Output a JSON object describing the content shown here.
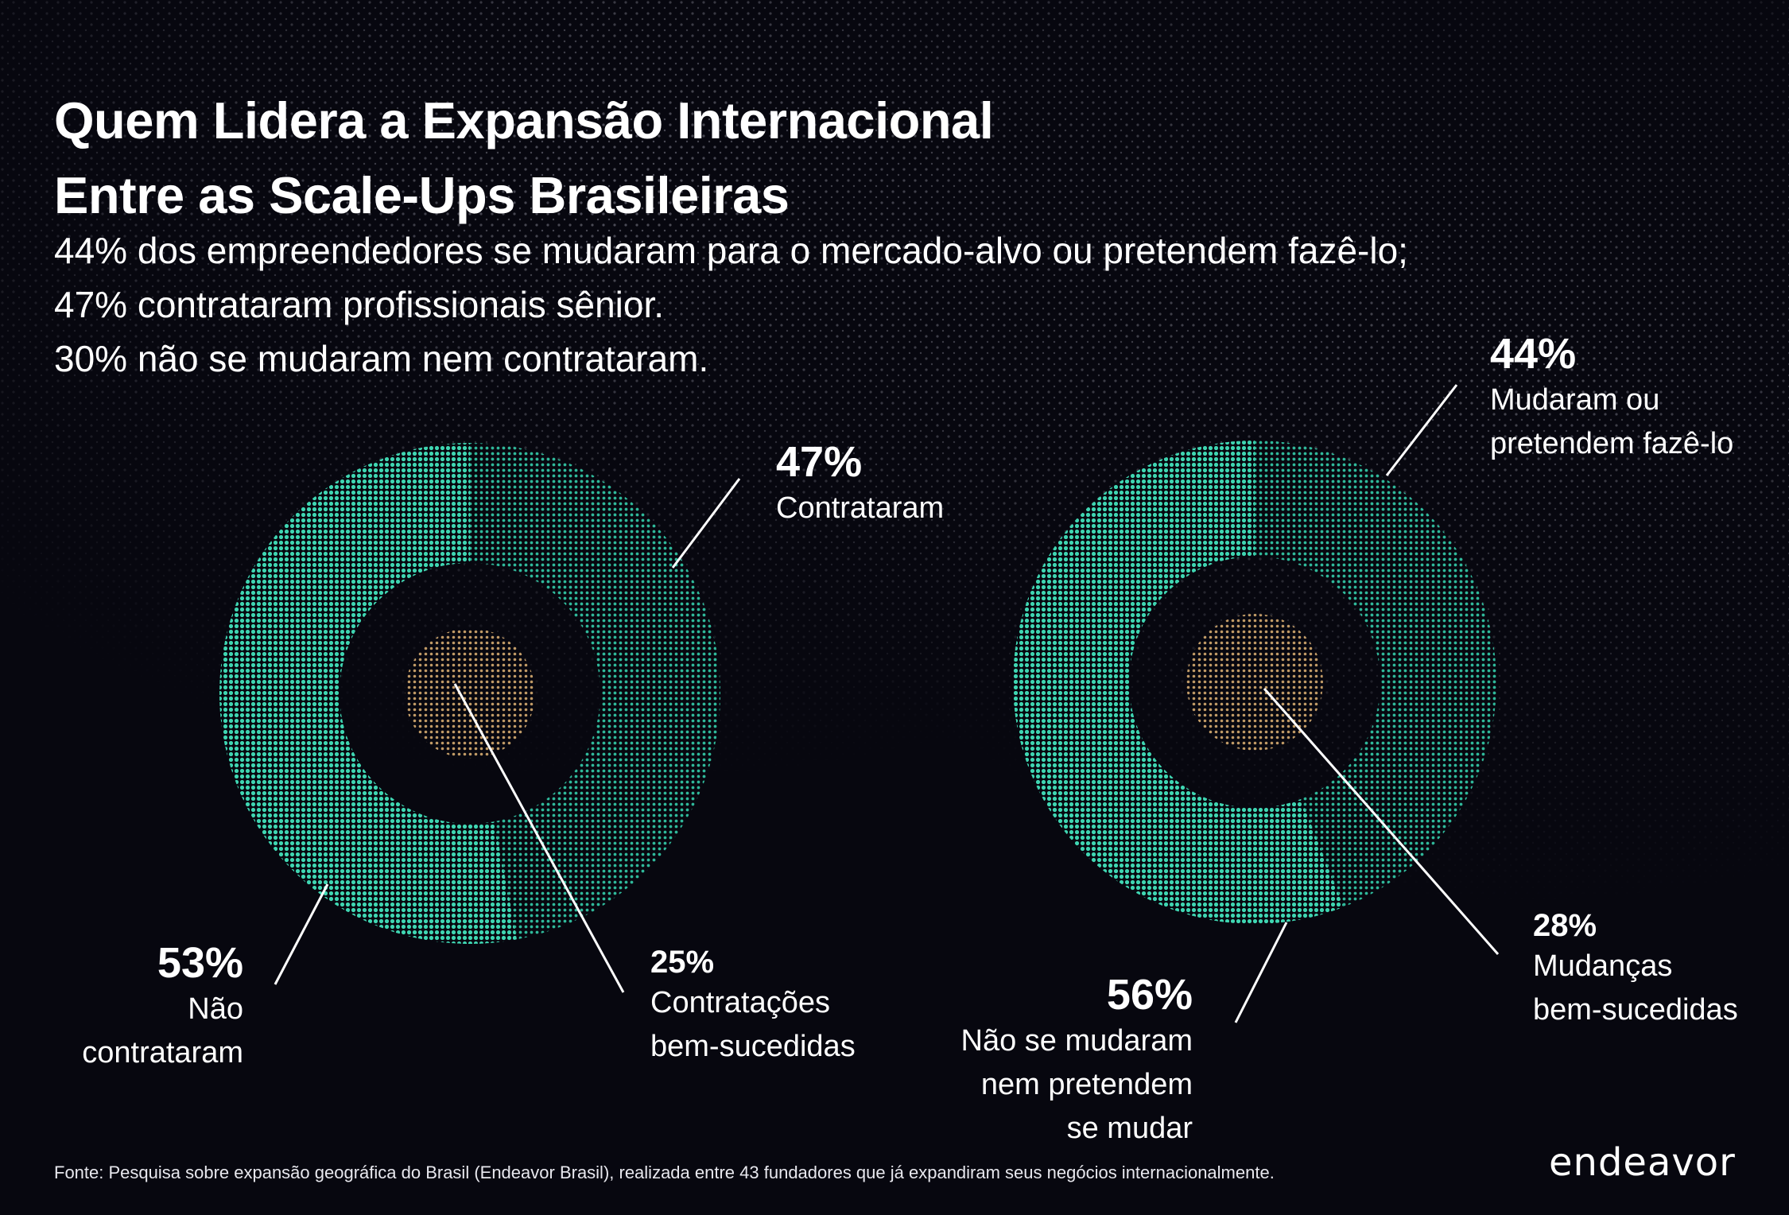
{
  "header": {
    "title_line1": "Quem Lidera a Expansão Internacional",
    "title_line2": "Entre as Scale-Ups Brasileiras",
    "subtitle_line1": "44% dos empreendedores se mudaram para o mercado-alvo ou pretendem fazê-lo;",
    "subtitle_line2": "47% contrataram profissionais sênior.",
    "subtitle_line3": "30% não se mudaram nem contrataram."
  },
  "colors": {
    "background": "#07070f",
    "teal_light": "#3fd6b2",
    "teal_dark": "#2a9f87",
    "gold": "#b58e5e",
    "text": "#ffffff"
  },
  "chart_data": [
    {
      "type": "pie",
      "subtype": "donut",
      "slices": [
        {
          "label_value": "47%",
          "label_text": "Contrataram",
          "value": 47
        },
        {
          "label_value": "53%",
          "label_text_line1": "Não",
          "label_text_line2": "contrataram",
          "value": 53
        }
      ],
      "center": {
        "label_value": "25%",
        "label_text_line1": "Contratações",
        "label_text_line2": "bem-sucedidas",
        "value": 25
      }
    },
    {
      "type": "pie",
      "subtype": "donut",
      "slices": [
        {
          "label_value": "44%",
          "label_text_line1": "Mudaram ou",
          "label_text_line2": "pretendem fazê-lo",
          "value": 44
        },
        {
          "label_value": "56%",
          "label_text_line1": "Não se mudaram",
          "label_text_line2": "nem pretendem",
          "label_text_line3": "se mudar",
          "value": 56
        }
      ],
      "center": {
        "label_value": "28%",
        "label_text_line1": "Mudanças",
        "label_text_line2": "bem-sucedidas",
        "value": 28
      }
    }
  ],
  "footer": {
    "source": "Fonte: Pesquisa sobre expansão geográfica do Brasil (Endeavor Brasil), realizada entre 43 fundadores que já expandiram seus negócios internacionalmente.",
    "logo_text": "endeavor"
  }
}
